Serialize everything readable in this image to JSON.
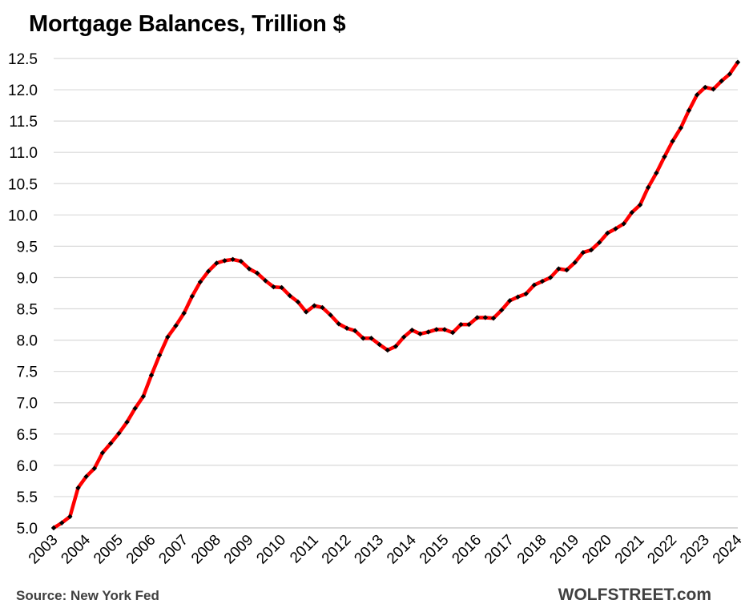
{
  "header": {
    "title": "Mortgage Balances, Trillion $"
  },
  "footer": {
    "source": "Source: New York Fed",
    "brand": "WOLFSTREET.com"
  },
  "chart_data": {
    "type": "line",
    "title": "Mortgage Balances, Trillion $",
    "xlabel": "",
    "ylabel": "",
    "xlim": [
      2003,
      2024
    ],
    "ylim": [
      5.0,
      12.5
    ],
    "y_ticks": [
      "5.0",
      "5.5",
      "6.0",
      "6.5",
      "7.0",
      "7.5",
      "8.0",
      "8.5",
      "9.0",
      "9.5",
      "10.0",
      "10.5",
      "11.0",
      "11.5",
      "12.0",
      "12.5"
    ],
    "x_ticks": [
      "2003",
      "2004",
      "2005",
      "2006",
      "2007",
      "2008",
      "2009",
      "2010",
      "2011",
      "2012",
      "2013",
      "2014",
      "2015",
      "2016",
      "2017",
      "2018",
      "2019",
      "2020",
      "2021",
      "2022",
      "2023",
      "2024"
    ],
    "grid": "horizontal",
    "legend": "none",
    "line_color": "#ff0000",
    "marker_color": "#000000",
    "series": [
      {
        "values": [
          [
            2003.0,
            5.0
          ],
          [
            2003.25,
            5.08
          ],
          [
            2003.5,
            5.18
          ],
          [
            2003.75,
            5.64
          ],
          [
            2004.0,
            5.82
          ],
          [
            2004.25,
            5.95
          ],
          [
            2004.5,
            6.2
          ],
          [
            2004.75,
            6.35
          ],
          [
            2005.0,
            6.51
          ],
          [
            2005.25,
            6.69
          ],
          [
            2005.5,
            6.91
          ],
          [
            2005.75,
            7.1
          ],
          [
            2006.0,
            7.44
          ],
          [
            2006.25,
            7.76
          ],
          [
            2006.5,
            8.05
          ],
          [
            2006.75,
            8.23
          ],
          [
            2007.0,
            8.43
          ],
          [
            2007.25,
            8.7
          ],
          [
            2007.5,
            8.93
          ],
          [
            2007.75,
            9.1
          ],
          [
            2008.0,
            9.23
          ],
          [
            2008.25,
            9.27
          ],
          [
            2008.5,
            9.29
          ],
          [
            2008.75,
            9.26
          ],
          [
            2009.0,
            9.14
          ],
          [
            2009.25,
            9.07
          ],
          [
            2009.5,
            8.95
          ],
          [
            2009.75,
            8.85
          ],
          [
            2010.0,
            8.84
          ],
          [
            2010.25,
            8.71
          ],
          [
            2010.5,
            8.61
          ],
          [
            2010.75,
            8.45
          ],
          [
            2011.0,
            8.55
          ],
          [
            2011.25,
            8.52
          ],
          [
            2011.5,
            8.4
          ],
          [
            2011.75,
            8.26
          ],
          [
            2012.0,
            8.19
          ],
          [
            2012.25,
            8.15
          ],
          [
            2012.5,
            8.03
          ],
          [
            2012.75,
            8.03
          ],
          [
            2013.0,
            7.93
          ],
          [
            2013.25,
            7.84
          ],
          [
            2013.5,
            7.9
          ],
          [
            2013.75,
            8.05
          ],
          [
            2014.0,
            8.16
          ],
          [
            2014.25,
            8.1
          ],
          [
            2014.5,
            8.13
          ],
          [
            2014.75,
            8.17
          ],
          [
            2015.0,
            8.17
          ],
          [
            2015.25,
            8.12
          ],
          [
            2015.5,
            8.25
          ],
          [
            2015.75,
            8.25
          ],
          [
            2016.0,
            8.36
          ],
          [
            2016.25,
            8.36
          ],
          [
            2016.5,
            8.35
          ],
          [
            2016.75,
            8.48
          ],
          [
            2017.0,
            8.63
          ],
          [
            2017.25,
            8.69
          ],
          [
            2017.5,
            8.74
          ],
          [
            2017.75,
            8.88
          ],
          [
            2018.0,
            8.94
          ],
          [
            2018.25,
            9.0
          ],
          [
            2018.5,
            9.14
          ],
          [
            2018.75,
            9.12
          ],
          [
            2019.0,
            9.24
          ],
          [
            2019.25,
            9.4
          ],
          [
            2019.5,
            9.44
          ],
          [
            2019.75,
            9.56
          ],
          [
            2020.0,
            9.71
          ],
          [
            2020.25,
            9.78
          ],
          [
            2020.5,
            9.86
          ],
          [
            2020.75,
            10.04
          ],
          [
            2021.0,
            10.16
          ],
          [
            2021.25,
            10.44
          ],
          [
            2021.5,
            10.67
          ],
          [
            2021.75,
            10.93
          ],
          [
            2022.0,
            11.18
          ],
          [
            2022.25,
            11.39
          ],
          [
            2022.5,
            11.67
          ],
          [
            2022.75,
            11.92
          ],
          [
            2023.0,
            12.04
          ],
          [
            2023.25,
            12.01
          ],
          [
            2023.5,
            12.14
          ],
          [
            2023.75,
            12.25
          ],
          [
            2024.0,
            12.44
          ]
        ]
      }
    ]
  }
}
